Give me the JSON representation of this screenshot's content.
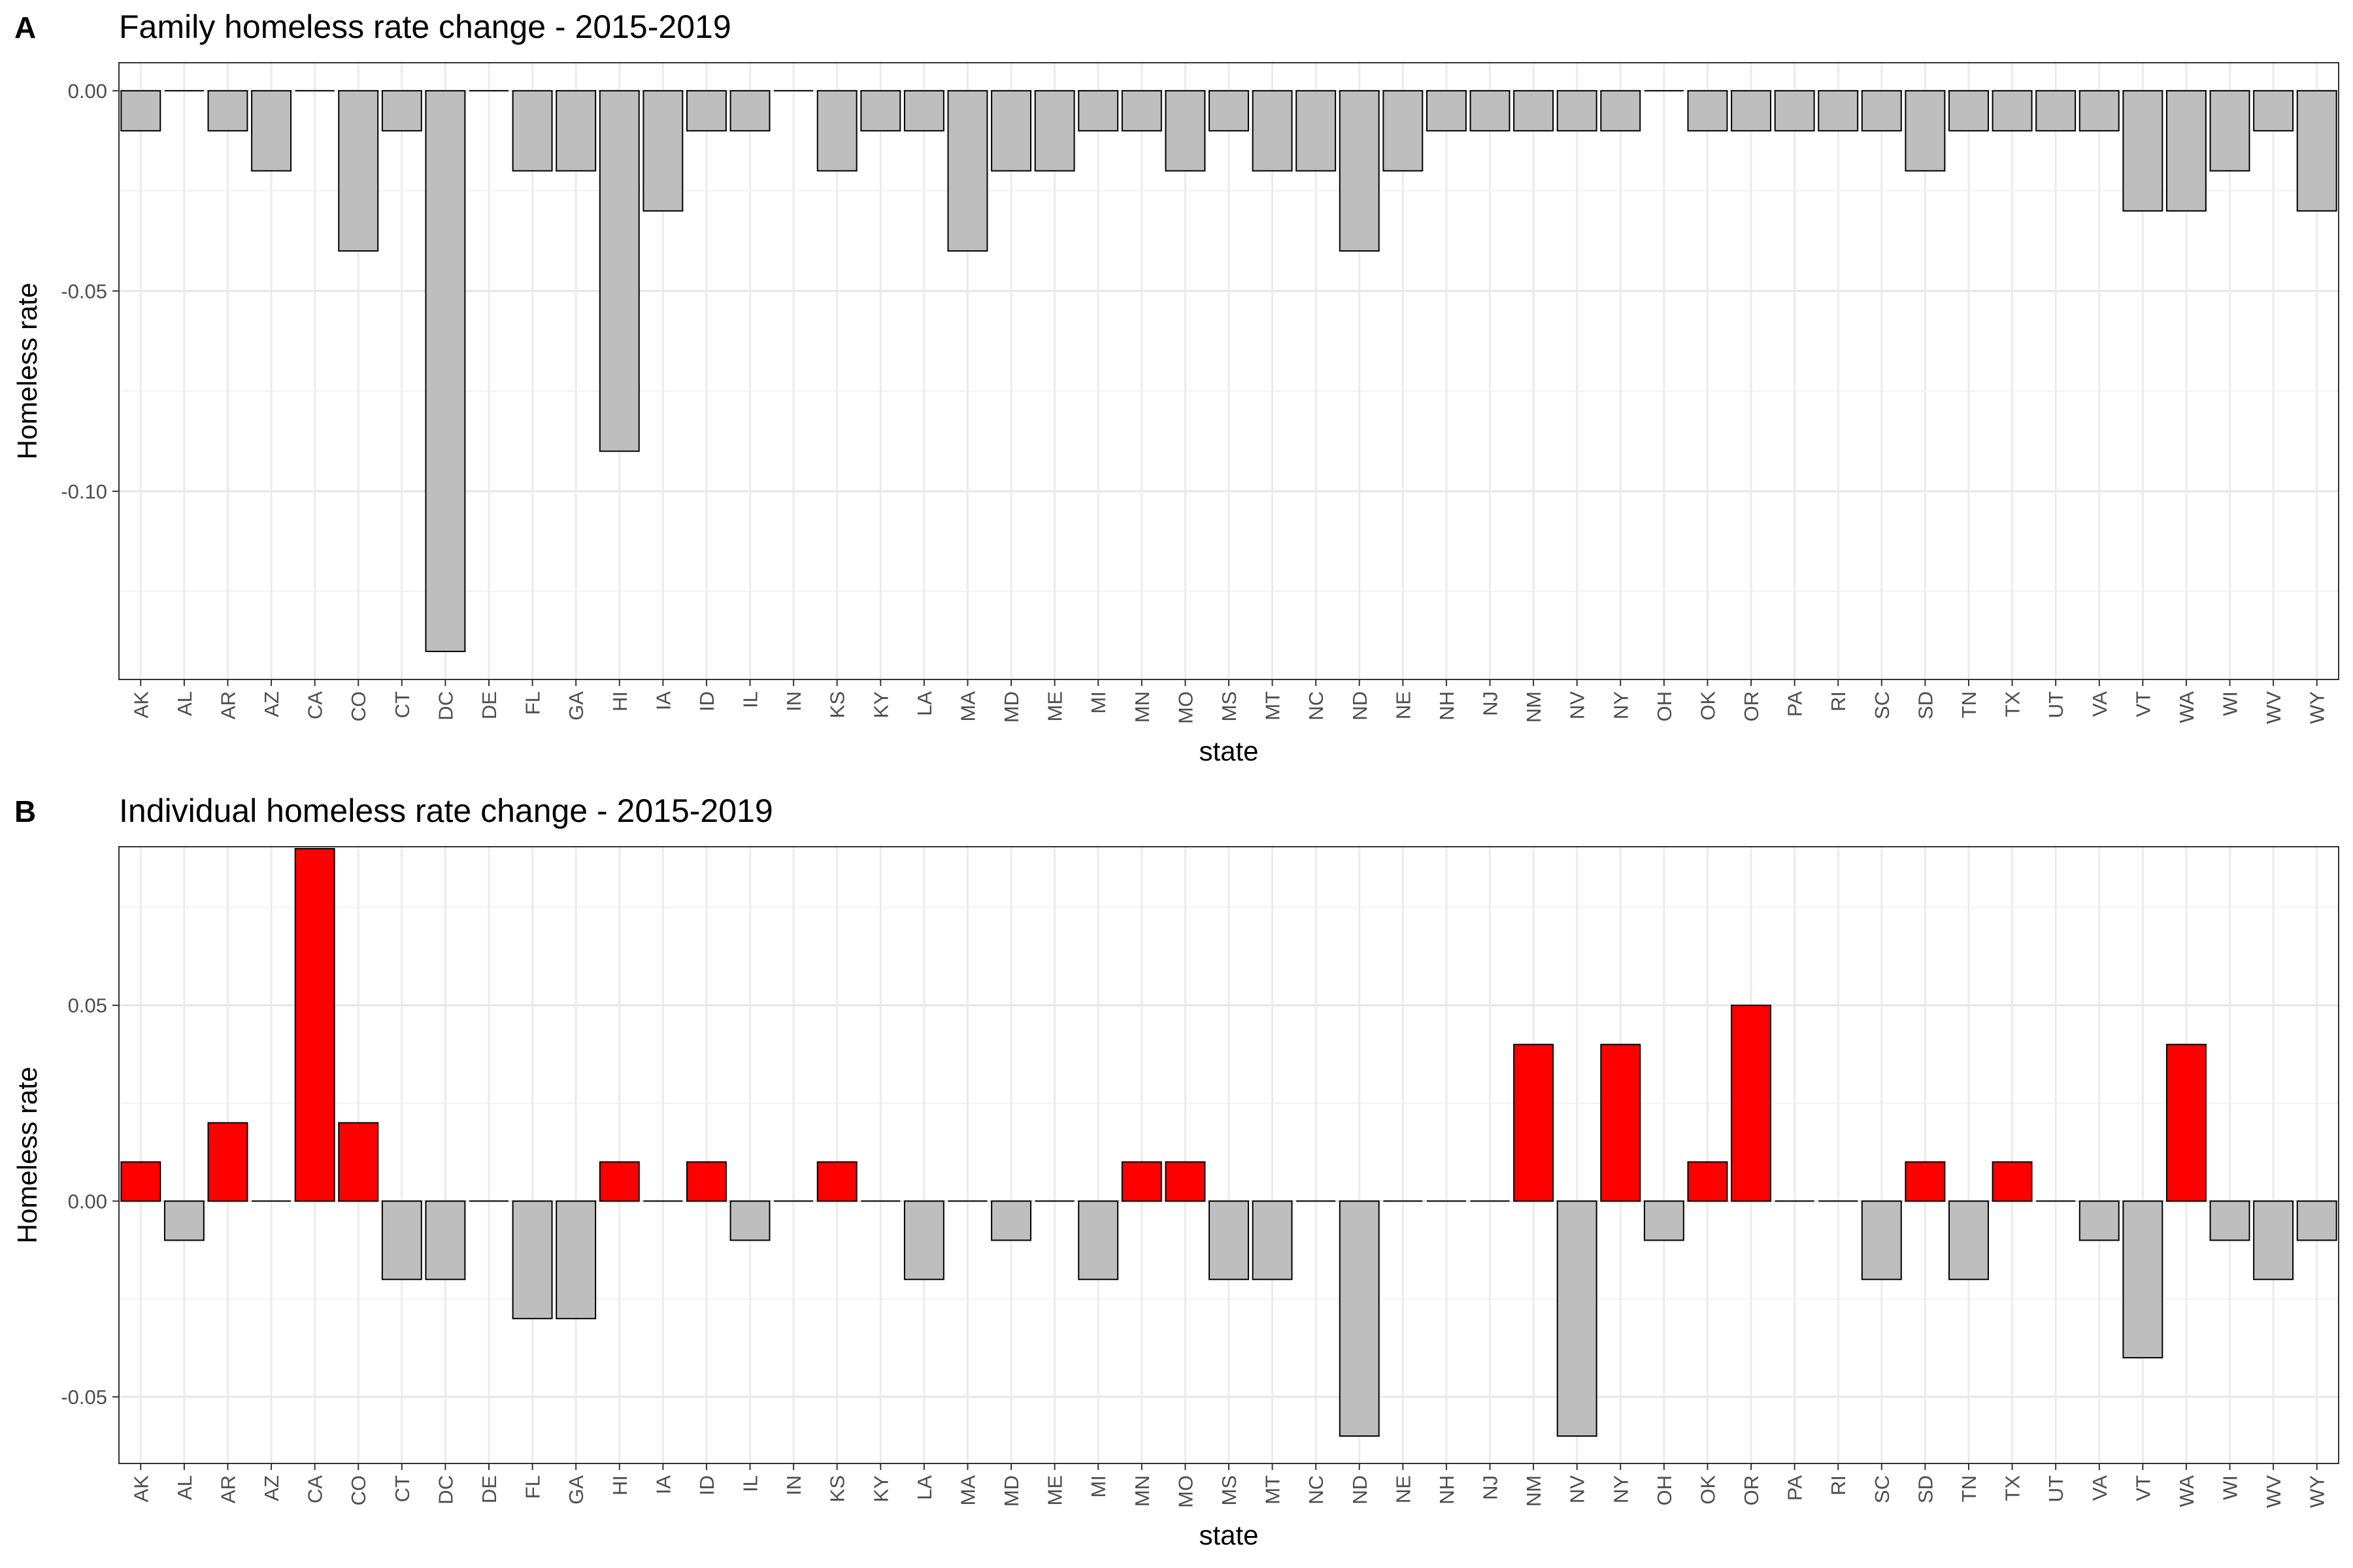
{
  "chart_data": [
    {
      "panel": "A",
      "type": "bar",
      "title": "Family homeless rate change - 2015-2019",
      "xlabel": "state",
      "ylabel": "Homeless rate",
      "ylim": [
        -0.147,
        0.007
      ],
      "yticks": [
        0.0,
        -0.05,
        -0.1
      ],
      "ytick_labels": [
        "0.00",
        "-0.05",
        "-0.10"
      ],
      "grid": true,
      "categories": [
        "AK",
        "AL",
        "AR",
        "AZ",
        "CA",
        "CO",
        "CT",
        "DC",
        "DE",
        "FL",
        "GA",
        "HI",
        "IA",
        "ID",
        "IL",
        "IN",
        "KS",
        "KY",
        "LA",
        "MA",
        "MD",
        "ME",
        "MI",
        "MN",
        "MO",
        "MS",
        "MT",
        "NC",
        "ND",
        "NE",
        "NH",
        "NJ",
        "NM",
        "NV",
        "NY",
        "OH",
        "OK",
        "OR",
        "PA",
        "RI",
        "SC",
        "SD",
        "TN",
        "TX",
        "UT",
        "VA",
        "VT",
        "WA",
        "WI",
        "WV",
        "WY"
      ],
      "values": [
        -0.01,
        0,
        -0.01,
        -0.02,
        0,
        -0.04,
        -0.01,
        -0.14,
        0,
        -0.02,
        -0.02,
        -0.09,
        -0.03,
        -0.01,
        -0.01,
        0,
        -0.02,
        -0.01,
        -0.01,
        -0.04,
        -0.02,
        -0.02,
        -0.01,
        -0.01,
        -0.02,
        -0.01,
        -0.02,
        -0.02,
        -0.04,
        -0.02,
        -0.01,
        -0.01,
        -0.01,
        -0.01,
        -0.01,
        0,
        -0.01,
        -0.01,
        -0.01,
        -0.01,
        -0.01,
        -0.02,
        -0.01,
        -0.01,
        -0.01,
        -0.01,
        -0.03,
        -0.03,
        -0.02,
        -0.01,
        -0.03
      ],
      "colors": {
        "increase": "#ff0000",
        "decrease": "#bebebe"
      }
    },
    {
      "panel": "B",
      "type": "bar",
      "title": "Individual homeless rate change - 2015-2019",
      "xlabel": "state",
      "ylabel": "Homeless rate",
      "ylim": [
        -0.067,
        0.0905
      ],
      "yticks": [
        0.05,
        0.0,
        -0.05
      ],
      "ytick_labels": [
        "0.05",
        "0.00",
        "-0.05"
      ],
      "grid": true,
      "categories": [
        "AK",
        "AL",
        "AR",
        "AZ",
        "CA",
        "CO",
        "CT",
        "DC",
        "DE",
        "FL",
        "GA",
        "HI",
        "IA",
        "ID",
        "IL",
        "IN",
        "KS",
        "KY",
        "LA",
        "MA",
        "MD",
        "ME",
        "MI",
        "MN",
        "MO",
        "MS",
        "MT",
        "NC",
        "ND",
        "NE",
        "NH",
        "NJ",
        "NM",
        "NV",
        "NY",
        "OH",
        "OK",
        "OR",
        "PA",
        "RI",
        "SC",
        "SD",
        "TN",
        "TX",
        "UT",
        "VA",
        "VT",
        "WA",
        "WI",
        "WV",
        "WY"
      ],
      "values": [
        0.01,
        -0.01,
        0.02,
        0,
        0.09,
        0.02,
        -0.02,
        -0.02,
        0,
        -0.03,
        -0.03,
        0.01,
        0,
        0.01,
        -0.01,
        0,
        0.01,
        0,
        -0.02,
        0,
        -0.01,
        0,
        -0.02,
        0.01,
        0.01,
        -0.02,
        -0.02,
        0,
        -0.06,
        0,
        0,
        0,
        0.04,
        -0.06,
        0.04,
        -0.01,
        0.01,
        0.05,
        0,
        0,
        -0.02,
        0.01,
        -0.02,
        0.01,
        0,
        -0.01,
        -0.04,
        0.04,
        -0.01,
        -0.02,
        -0.01
      ],
      "colors": {
        "increase": "#ff0000",
        "decrease": "#bebebe"
      }
    }
  ]
}
